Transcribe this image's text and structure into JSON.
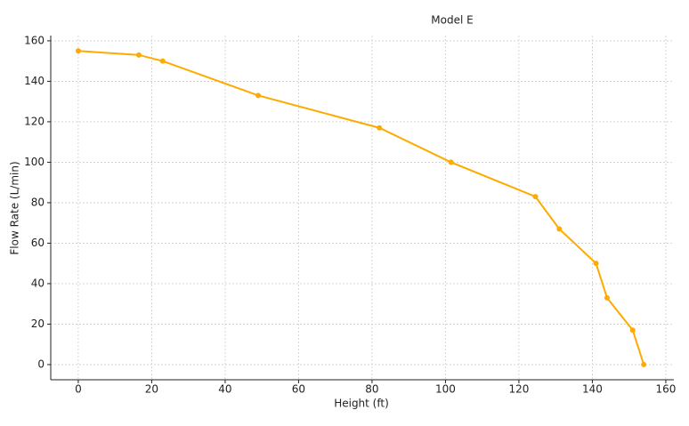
{
  "chart_data": {
    "type": "line",
    "title": "Model E",
    "x_label": "Height (ft)",
    "y_label": "Flow Rate (L/min)",
    "x": [
      0,
      16.5,
      23,
      49,
      82,
      101.5,
      124.5,
      131,
      141,
      144,
      151,
      154
    ],
    "series": [
      {
        "name": "Model E",
        "color": "#ffaa00",
        "values": [
          155,
          153,
          150,
          133,
          117,
          100,
          83,
          67,
          50,
          33,
          17,
          0
        ]
      }
    ],
    "xlim": [
      -7.5,
      162.2
    ],
    "ylim": [
      -7.5,
      162.6
    ],
    "xticks": [
      0,
      20,
      40,
      60,
      80,
      100,
      120,
      140,
      160
    ],
    "yticks": [
      0,
      20,
      40,
      60,
      80,
      100,
      120,
      140,
      160
    ],
    "grid": true
  }
}
